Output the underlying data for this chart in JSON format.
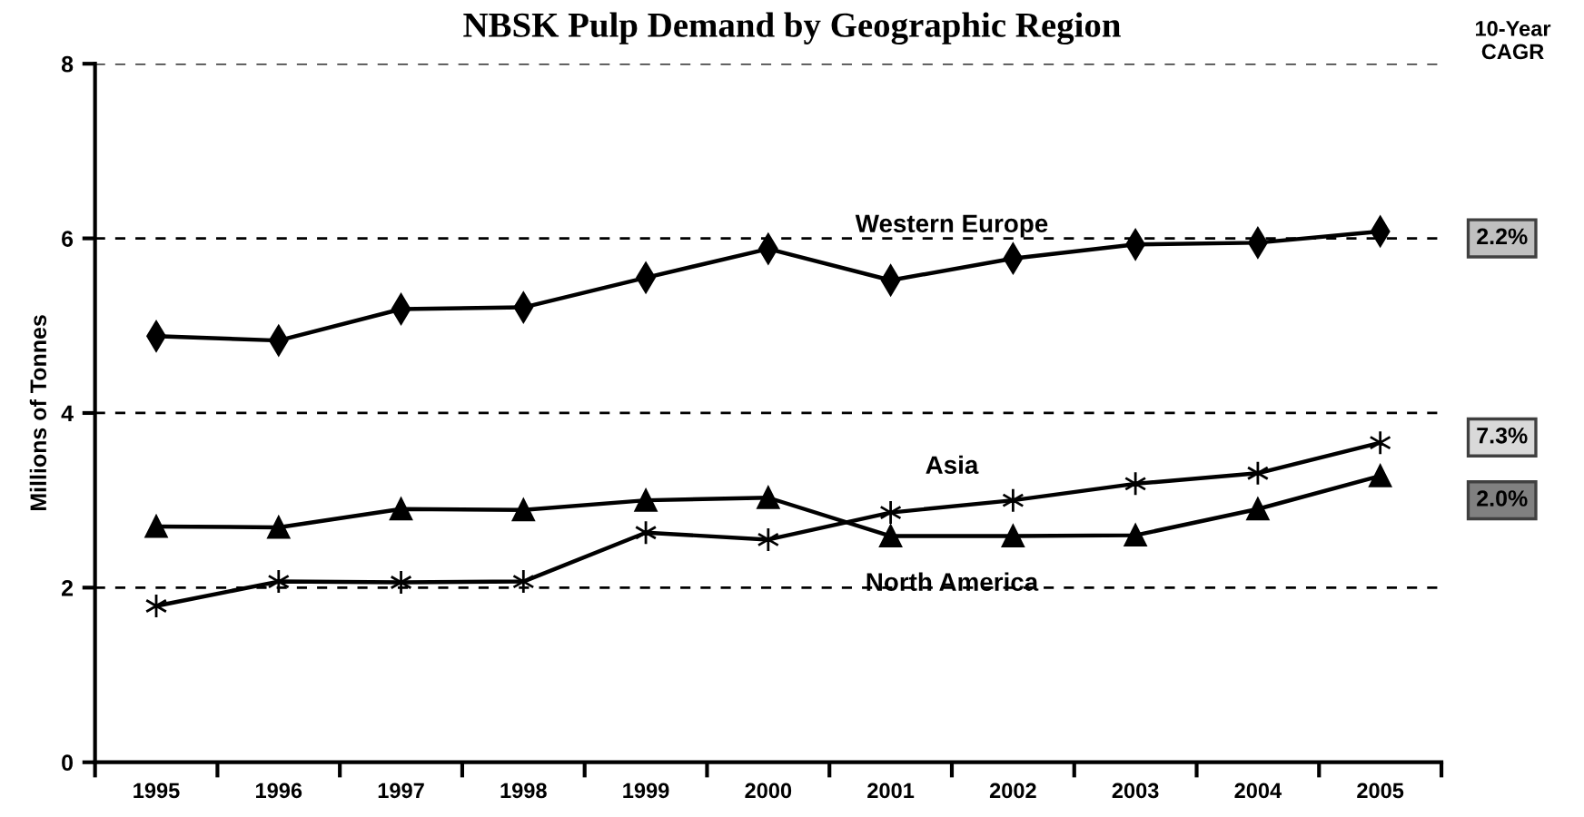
{
  "chart_data": {
    "type": "line",
    "title": "NBSK Pulp Demand by Geographic Region",
    "ylabel": "Millions of Tonnes",
    "categories": [
      "1995",
      "1996",
      "1997",
      "1998",
      "1999",
      "2000",
      "2001",
      "2002",
      "2003",
      "2004",
      "2005"
    ],
    "series": [
      {
        "name": "Western Europe",
        "color": "#000000",
        "marker": "diamond",
        "values": [
          4.88,
          4.83,
          5.19,
          5.21,
          5.55,
          5.88,
          5.52,
          5.77,
          5.93,
          5.95,
          6.08
        ]
      },
      {
        "name": "Asia",
        "color": "#000000",
        "marker": "cross",
        "values": [
          1.79,
          2.07,
          2.06,
          2.07,
          2.63,
          2.55,
          2.86,
          3.0,
          3.19,
          3.31,
          3.66
        ]
      },
      {
        "name": "North America",
        "color": "#000000",
        "marker": "triangle",
        "values": [
          2.7,
          2.69,
          2.9,
          2.89,
          3.0,
          3.03,
          2.59,
          2.59,
          2.6,
          2.9,
          3.28
        ]
      }
    ],
    "ylim": [
      0,
      8
    ],
    "yticks": [
      0,
      2,
      4,
      6,
      8
    ],
    "grid": "y",
    "legend": false,
    "annotations": [
      "10-Year\nCAGR",
      "2.2%",
      "7.3%",
      "2.0%"
    ]
  }
}
